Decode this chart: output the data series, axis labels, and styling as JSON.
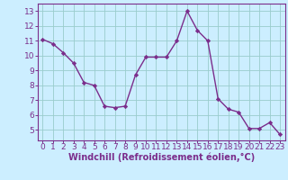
{
  "x": [
    0,
    1,
    2,
    3,
    4,
    5,
    6,
    7,
    8,
    9,
    10,
    11,
    12,
    13,
    14,
    15,
    16,
    17,
    18,
    19,
    20,
    21,
    22,
    23
  ],
  "y": [
    11.1,
    10.8,
    10.2,
    9.5,
    8.2,
    8.0,
    6.6,
    6.5,
    6.6,
    8.7,
    9.9,
    9.9,
    9.9,
    11.0,
    13.0,
    11.7,
    11.0,
    7.1,
    6.4,
    6.2,
    5.1,
    5.1,
    5.5,
    4.7
  ],
  "line_color": "#7b2d8b",
  "marker": "D",
  "marker_size": 2.2,
  "bg_color": "#cceeff",
  "grid_color": "#99cccc",
  "xlabel": "Windchill (Refroidissement éolien,°C)",
  "xlabel_color": "#7b2d8b",
  "tick_color": "#7b2d8b",
  "ylim": [
    4.3,
    13.5
  ],
  "xlim": [
    -0.5,
    23.5
  ],
  "yticks": [
    5,
    6,
    7,
    8,
    9,
    10,
    11,
    12,
    13
  ],
  "xticks": [
    0,
    1,
    2,
    3,
    4,
    5,
    6,
    7,
    8,
    9,
    10,
    11,
    12,
    13,
    14,
    15,
    16,
    17,
    18,
    19,
    20,
    21,
    22,
    23
  ],
  "tick_fontsize": 6.5,
  "xlabel_fontsize": 7.0,
  "line_width": 1.0,
  "border_color": "#7b2d8b"
}
